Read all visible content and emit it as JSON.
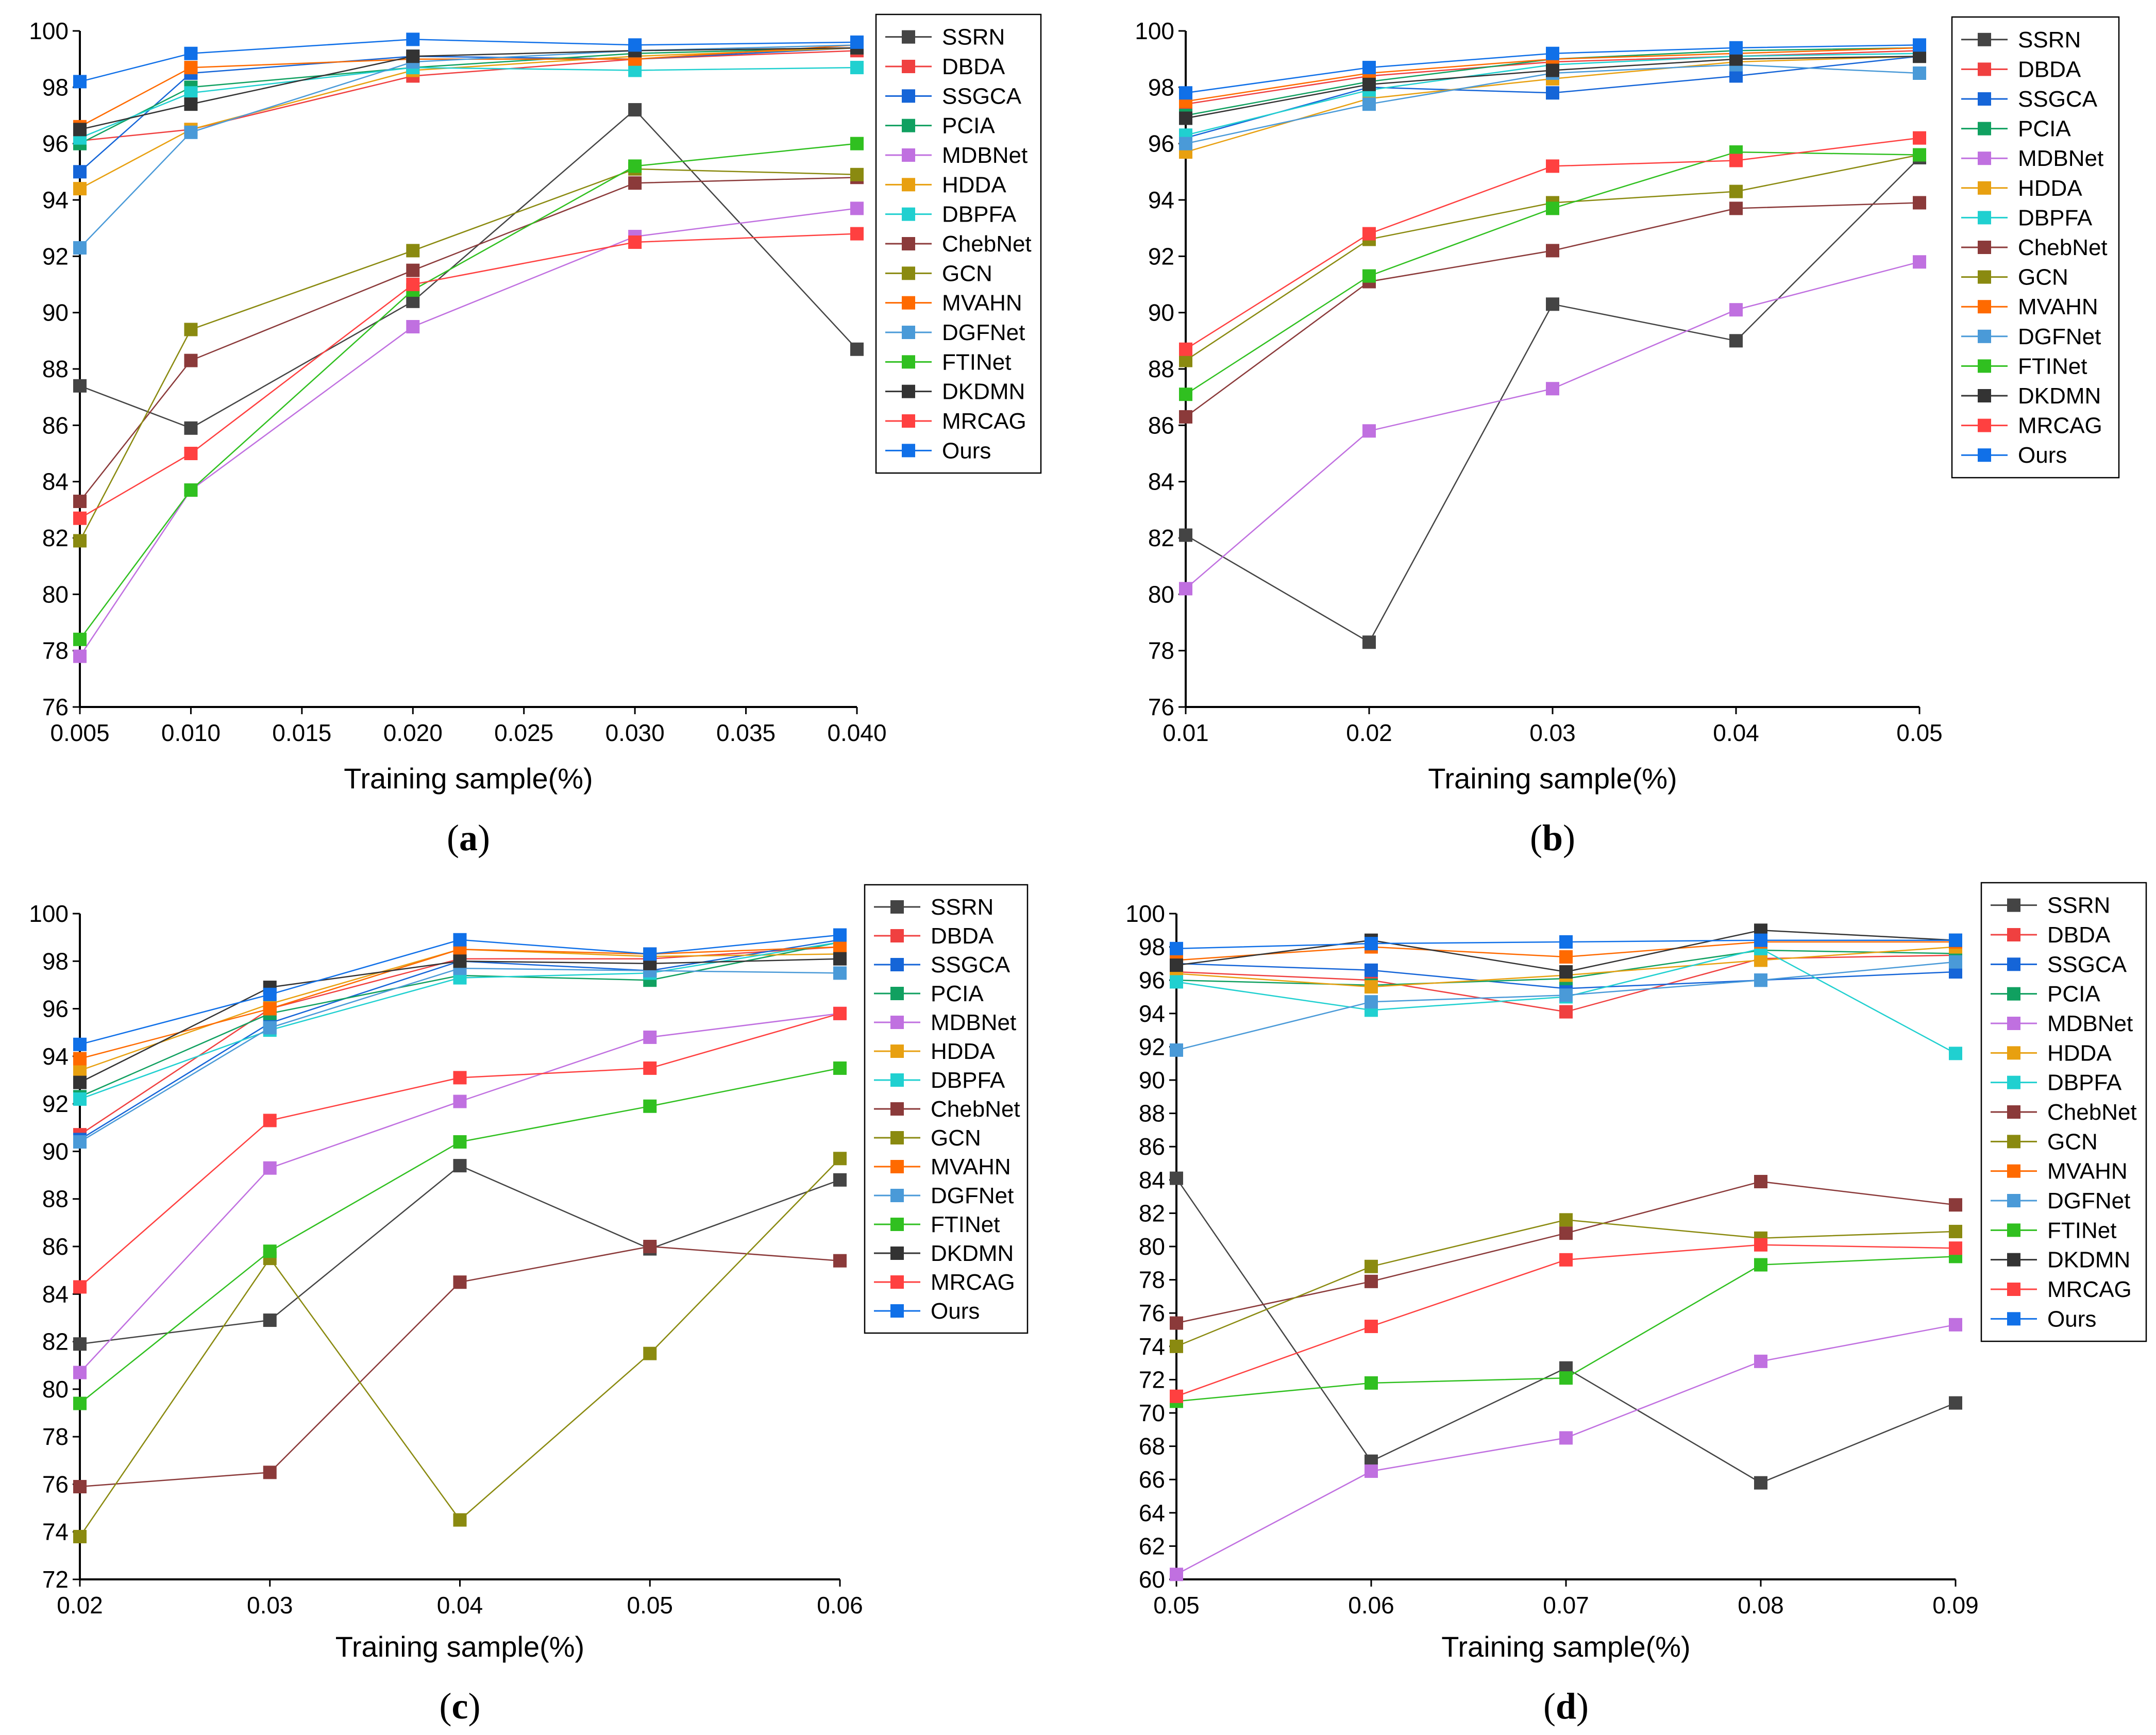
{
  "legend_labels": [
    "SSRN",
    "DBDA",
    "SSGCA",
    "PCIA",
    "MDBNet",
    "HDDA",
    "DBPFA",
    "ChebNet",
    "GCN",
    "MVAHN",
    "DGFNet",
    "FTINet",
    "DKDMN",
    "MRCAG",
    "Ours"
  ],
  "series_colors": [
    "#444444",
    "#f04040",
    "#1565d8",
    "#10a060",
    "#c070e0",
    "#e8a010",
    "#20d0d0",
    "#8b3a3a",
    "#8a8a10",
    "#ff6a00",
    "#4a9ad8",
    "#30c020",
    "#333333",
    "#ff4040",
    "#1070e8"
  ],
  "chart_data": [
    {
      "type": "line",
      "panel": "a",
      "xlabel": "Training sample(%)",
      "ylabel": "",
      "legend_position": "top-right",
      "x": [
        0.005,
        0.01,
        0.02,
        0.03,
        0.04
      ],
      "xlim": [
        0.005,
        0.04
      ],
      "ylim": [
        76,
        100
      ],
      "xticks": [
        "0.005",
        "0.010",
        "0.015",
        "0.020",
        "0.025",
        "0.030",
        "0.035",
        "0.040"
      ],
      "yticks": [
        "76",
        "78",
        "80",
        "82",
        "84",
        "86",
        "88",
        "90",
        "92",
        "94",
        "96",
        "98",
        "100"
      ],
      "series": [
        {
          "name": "SSRN",
          "values": [
            87.4,
            85.9,
            90.4,
            97.2,
            88.7
          ]
        },
        {
          "name": "DBDA",
          "values": [
            96.1,
            96.5,
            98.4,
            99.0,
            99.3
          ]
        },
        {
          "name": "SSGCA",
          "values": [
            95.0,
            98.5,
            99.1,
            99.0,
            99.4
          ]
        },
        {
          "name": "PCIA",
          "values": [
            96.0,
            98.0,
            98.7,
            99.2,
            99.4
          ]
        },
        {
          "name": "MDBNet",
          "values": [
            77.8,
            83.7,
            89.5,
            92.7,
            93.7
          ]
        },
        {
          "name": "HDDA",
          "values": [
            94.4,
            96.5,
            98.6,
            99.1,
            99.4
          ]
        },
        {
          "name": "DBPFA",
          "values": [
            96.2,
            97.8,
            98.7,
            98.6,
            98.7
          ]
        },
        {
          "name": "ChebNet",
          "values": [
            83.3,
            88.3,
            91.5,
            94.6,
            94.8
          ]
        },
        {
          "name": "GCN",
          "values": [
            81.9,
            89.4,
            92.2,
            95.1,
            94.9
          ]
        },
        {
          "name": "MVAHN",
          "values": [
            96.6,
            98.7,
            99.0,
            99.0,
            99.5
          ]
        },
        {
          "name": "DGFNet",
          "values": [
            92.3,
            96.4,
            98.9,
            99.3,
            99.5
          ]
        },
        {
          "name": "FTINet",
          "values": [
            78.4,
            83.7,
            90.8,
            95.2,
            96.0
          ]
        },
        {
          "name": "DKDMN",
          "values": [
            96.5,
            97.4,
            99.1,
            99.3,
            99.4
          ]
        },
        {
          "name": "MRCAG",
          "values": [
            82.7,
            85.0,
            91.0,
            92.5,
            92.8
          ]
        },
        {
          "name": "Ours",
          "values": [
            98.2,
            99.2,
            99.7,
            99.5,
            99.6
          ]
        }
      ]
    },
    {
      "type": "line",
      "panel": "b",
      "xlabel": "Training sample(%)",
      "ylabel": "",
      "legend_position": "top-right",
      "x": [
        0.01,
        0.02,
        0.03,
        0.04,
        0.05
      ],
      "xlim": [
        0.01,
        0.05
      ],
      "ylim": [
        76,
        100
      ],
      "xticks": [
        "0.01",
        "0.02",
        "0.03",
        "0.04",
        "0.05"
      ],
      "yticks": [
        "76",
        "78",
        "80",
        "82",
        "84",
        "86",
        "88",
        "90",
        "92",
        "94",
        "96",
        "98",
        "100"
      ],
      "series": [
        {
          "name": "SSRN",
          "values": [
            82.1,
            78.3,
            90.3,
            89.0,
            95.5
          ]
        },
        {
          "name": "DBDA",
          "values": [
            97.4,
            98.4,
            98.9,
            99.1,
            99.3
          ]
        },
        {
          "name": "SSGCA",
          "values": [
            96.2,
            98.0,
            97.8,
            98.4,
            99.1
          ]
        },
        {
          "name": "PCIA",
          "values": [
            97.0,
            98.2,
            99.0,
            99.3,
            99.4
          ]
        },
        {
          "name": "MDBNet",
          "values": [
            80.2,
            85.8,
            87.3,
            90.1,
            91.8
          ]
        },
        {
          "name": "HDDA",
          "values": [
            95.7,
            97.6,
            98.3,
            98.9,
            99.1
          ]
        },
        {
          "name": "DBPFA",
          "values": [
            96.3,
            97.9,
            98.8,
            99.1,
            99.2
          ]
        },
        {
          "name": "ChebNet",
          "values": [
            86.3,
            91.1,
            92.2,
            93.7,
            93.9
          ]
        },
        {
          "name": "GCN",
          "values": [
            88.3,
            92.6,
            93.9,
            94.3,
            95.6
          ]
        },
        {
          "name": "MVAHN",
          "values": [
            97.5,
            98.5,
            99.0,
            99.2,
            99.4
          ]
        },
        {
          "name": "DGFNet",
          "values": [
            96.0,
            97.4,
            98.5,
            98.8,
            98.5
          ]
        },
        {
          "name": "FTINet",
          "values": [
            87.1,
            91.3,
            93.7,
            95.7,
            95.6
          ]
        },
        {
          "name": "DKDMN",
          "values": [
            96.9,
            98.1,
            98.6,
            99.0,
            99.1
          ]
        },
        {
          "name": "MRCAG",
          "values": [
            88.7,
            92.8,
            95.2,
            95.4,
            96.2
          ]
        },
        {
          "name": "Ours",
          "values": [
            97.8,
            98.7,
            99.2,
            99.4,
            99.5
          ]
        }
      ]
    },
    {
      "type": "line",
      "panel": "c",
      "xlabel": "Training sample(%)",
      "ylabel": "",
      "legend_position": "top-right",
      "x": [
        0.02,
        0.03,
        0.04,
        0.05,
        0.06
      ],
      "xlim": [
        0.02,
        0.06
      ],
      "ylim": [
        72,
        100
      ],
      "xticks": [
        "0.02",
        "0.03",
        "0.04",
        "0.05",
        "0.06"
      ],
      "yticks": [
        "72",
        "74",
        "76",
        "78",
        "80",
        "82",
        "84",
        "86",
        "88",
        "90",
        "92",
        "94",
        "96",
        "98",
        "100"
      ],
      "series": [
        {
          "name": "SSRN",
          "values": [
            81.9,
            82.9,
            89.4,
            85.9,
            88.8
          ]
        },
        {
          "name": "DBDA",
          "values": [
            90.7,
            96.0,
            98.1,
            98.1,
            98.6
          ]
        },
        {
          "name": "SSGCA",
          "values": [
            90.5,
            95.4,
            98.0,
            97.6,
            98.9
          ]
        },
        {
          "name": "PCIA",
          "values": [
            92.3,
            95.8,
            97.4,
            97.2,
            98.8
          ]
        },
        {
          "name": "MDBNet",
          "values": [
            80.7,
            89.3,
            92.1,
            94.8,
            95.8
          ]
        },
        {
          "name": "HDDA",
          "values": [
            93.4,
            96.2,
            98.5,
            98.2,
            98.3
          ]
        },
        {
          "name": "DBPFA",
          "values": [
            92.2,
            95.1,
            97.3,
            97.5,
            98.8
          ]
        },
        {
          "name": "ChebNet",
          "values": [
            75.9,
            76.5,
            84.5,
            86.0,
            85.4
          ]
        },
        {
          "name": "GCN",
          "values": [
            73.8,
            85.5,
            74.5,
            81.5,
            89.7
          ]
        },
        {
          "name": "MVAHN",
          "values": [
            93.9,
            96.0,
            98.5,
            98.3,
            98.6
          ]
        },
        {
          "name": "DGFNet",
          "values": [
            90.4,
            95.2,
            97.7,
            97.6,
            97.5
          ]
        },
        {
          "name": "FTINet",
          "values": [
            79.4,
            85.8,
            90.4,
            91.9,
            93.5
          ]
        },
        {
          "name": "DKDMN",
          "values": [
            92.9,
            96.9,
            98.0,
            97.9,
            98.1
          ]
        },
        {
          "name": "MRCAG",
          "values": [
            84.3,
            91.3,
            93.1,
            93.5,
            95.8
          ]
        },
        {
          "name": "Ours",
          "values": [
            94.5,
            96.6,
            98.9,
            98.3,
            99.1
          ]
        }
      ]
    },
    {
      "type": "line",
      "panel": "d",
      "xlabel": "Training sample(%)",
      "ylabel": "",
      "legend_position": "top-right",
      "x": [
        0.05,
        0.06,
        0.07,
        0.08,
        0.09
      ],
      "xlim": [
        0.05,
        0.09
      ],
      "ylim": [
        60,
        100
      ],
      "xticks": [
        "0.05",
        "0.06",
        "0.07",
        "0.08",
        "0.09"
      ],
      "yticks": [
        "60",
        "62",
        "64",
        "66",
        "68",
        "70",
        "72",
        "74",
        "76",
        "78",
        "80",
        "82",
        "84",
        "86",
        "88",
        "90",
        "92",
        "94",
        "96",
        "98",
        "100"
      ],
      "series": [
        {
          "name": "SSRN",
          "values": [
            84.1,
            67.1,
            72.7,
            65.8,
            70.6
          ]
        },
        {
          "name": "DBDA",
          "values": [
            96.5,
            96.0,
            94.1,
            97.3,
            97.5
          ]
        },
        {
          "name": "SSGCA",
          "values": [
            97.0,
            96.6,
            95.5,
            96.0,
            96.5
          ]
        },
        {
          "name": "PCIA",
          "values": [
            96.0,
            95.7,
            96.1,
            97.8,
            97.6
          ]
        },
        {
          "name": "MDBNet",
          "values": [
            60.3,
            66.5,
            68.5,
            73.1,
            75.3
          ]
        },
        {
          "name": "HDDA",
          "values": [
            96.4,
            95.6,
            96.3,
            97.2,
            98.0
          ]
        },
        {
          "name": "DBPFA",
          "values": [
            95.9,
            94.2,
            95.0,
            97.9,
            91.6
          ]
        },
        {
          "name": "ChebNet",
          "values": [
            75.4,
            77.9,
            80.8,
            83.9,
            82.5
          ]
        },
        {
          "name": "GCN",
          "values": [
            74.0,
            78.8,
            81.6,
            80.5,
            80.9
          ]
        },
        {
          "name": "MVAHN",
          "values": [
            97.2,
            98.0,
            97.4,
            98.3,
            98.3
          ]
        },
        {
          "name": "DGFNet",
          "values": [
            91.8,
            94.7,
            95.1,
            96.0,
            97.1
          ]
        },
        {
          "name": "FTINet",
          "values": [
            70.7,
            71.8,
            72.1,
            78.9,
            79.4
          ]
        },
        {
          "name": "DKDMN",
          "values": [
            96.9,
            98.4,
            96.5,
            99.0,
            98.4
          ]
        },
        {
          "name": "MRCAG",
          "values": [
            71.0,
            75.2,
            79.2,
            80.1,
            79.9
          ]
        },
        {
          "name": "Ours",
          "values": [
            97.9,
            98.2,
            98.3,
            98.4,
            98.4
          ]
        }
      ]
    }
  ],
  "panel_labels": [
    "a",
    "b",
    "c",
    "d"
  ]
}
